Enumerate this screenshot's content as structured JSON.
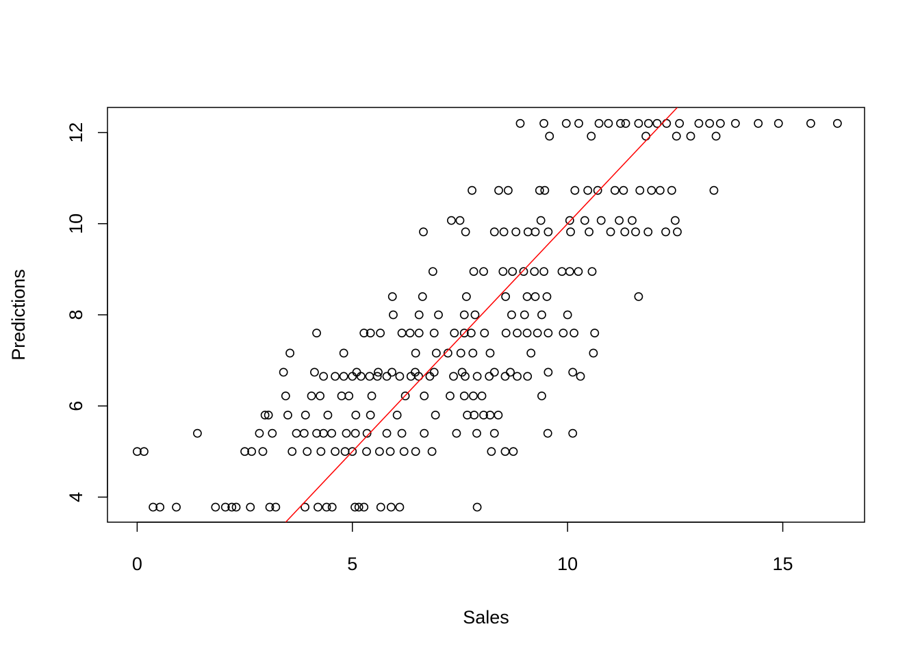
{
  "chart_data": {
    "type": "scatter",
    "title": "",
    "xlabel": "Sales",
    "ylabel": "Predictions",
    "xlim": [
      -0.69,
      16.9
    ],
    "ylim": [
      3.45,
      12.55
    ],
    "x_ticks": [
      0,
      5,
      10,
      15
    ],
    "y_ticks": [
      4,
      6,
      8,
      10,
      12
    ],
    "grid": false,
    "legend": "none",
    "colors": {
      "points": "#000000",
      "line": "#ff0000",
      "frame": "#000000"
    },
    "reference_line": {
      "type": "y=x",
      "color": "#ff0000"
    },
    "series": [
      {
        "points": [
          [
            0,
            5.0
          ],
          [
            0.16,
            5.0
          ],
          [
            0.37,
            3.78
          ],
          [
            0.53,
            3.78
          ],
          [
            0.91,
            3.78
          ],
          [
            1.82,
            3.78
          ],
          [
            2.05,
            3.78
          ],
          [
            2.2,
            3.78
          ],
          [
            2.3,
            3.78
          ],
          [
            2.63,
            3.78
          ],
          [
            3.08,
            3.78
          ],
          [
            3.22,
            3.78
          ],
          [
            3.9,
            3.78
          ],
          [
            4.2,
            3.78
          ],
          [
            4.4,
            3.78
          ],
          [
            4.53,
            3.78
          ],
          [
            5.06,
            3.78
          ],
          [
            5.15,
            3.78
          ],
          [
            5.27,
            3.78
          ],
          [
            5.66,
            3.78
          ],
          [
            5.9,
            3.78
          ],
          [
            6.1,
            3.78
          ],
          [
            7.9,
            3.78
          ],
          [
            1.4,
            5.4
          ],
          [
            2.84,
            5.4
          ],
          [
            3.14,
            5.4
          ],
          [
            3.7,
            5.4
          ],
          [
            3.88,
            5.4
          ],
          [
            4.17,
            5.4
          ],
          [
            4.33,
            5.4
          ],
          [
            4.52,
            5.4
          ],
          [
            4.86,
            5.4
          ],
          [
            5.07,
            5.4
          ],
          [
            5.34,
            5.4
          ],
          [
            5.8,
            5.4
          ],
          [
            6.15,
            5.4
          ],
          [
            6.67,
            5.4
          ],
          [
            7.42,
            5.4
          ],
          [
            7.89,
            5.4
          ],
          [
            8.3,
            5.4
          ],
          [
            9.54,
            5.4
          ],
          [
            10.12,
            5.4
          ],
          [
            2.5,
            5.0
          ],
          [
            2.66,
            5.0
          ],
          [
            2.92,
            5.0
          ],
          [
            3.6,
            5.0
          ],
          [
            3.95,
            5.0
          ],
          [
            4.27,
            5.0
          ],
          [
            4.6,
            5.0
          ],
          [
            4.83,
            5.0
          ],
          [
            5.0,
            5.0
          ],
          [
            5.33,
            5.0
          ],
          [
            5.63,
            5.0
          ],
          [
            5.88,
            5.0
          ],
          [
            6.2,
            5.0
          ],
          [
            6.47,
            5.0
          ],
          [
            6.85,
            5.0
          ],
          [
            8.23,
            5.0
          ],
          [
            8.55,
            5.0
          ],
          [
            8.74,
            5.0
          ],
          [
            2.97,
            5.8
          ],
          [
            3.05,
            5.8
          ],
          [
            3.5,
            5.8
          ],
          [
            3.91,
            5.8
          ],
          [
            4.43,
            5.8
          ],
          [
            5.08,
            5.8
          ],
          [
            5.42,
            5.8
          ],
          [
            6.04,
            5.8
          ],
          [
            6.93,
            5.8
          ],
          [
            7.67,
            5.8
          ],
          [
            7.83,
            5.8
          ],
          [
            8.05,
            5.8
          ],
          [
            8.2,
            5.8
          ],
          [
            8.39,
            5.8
          ],
          [
            3.45,
            6.22
          ],
          [
            4.05,
            6.22
          ],
          [
            4.25,
            6.22
          ],
          [
            4.75,
            6.22
          ],
          [
            4.92,
            6.22
          ],
          [
            5.45,
            6.22
          ],
          [
            6.23,
            6.22
          ],
          [
            6.67,
            6.22
          ],
          [
            7.27,
            6.22
          ],
          [
            7.6,
            6.22
          ],
          [
            7.81,
            6.22
          ],
          [
            8.01,
            6.22
          ],
          [
            9.4,
            6.22
          ],
          [
            3.4,
            6.74
          ],
          [
            4.12,
            6.74
          ],
          [
            5.1,
            6.74
          ],
          [
            5.6,
            6.74
          ],
          [
            5.92,
            6.74
          ],
          [
            6.46,
            6.74
          ],
          [
            6.9,
            6.74
          ],
          [
            7.55,
            6.74
          ],
          [
            8.3,
            6.74
          ],
          [
            8.67,
            6.74
          ],
          [
            9.55,
            6.74
          ],
          [
            10.12,
            6.74
          ],
          [
            4.33,
            6.65
          ],
          [
            4.6,
            6.65
          ],
          [
            4.8,
            6.65
          ],
          [
            5.0,
            6.65
          ],
          [
            5.2,
            6.65
          ],
          [
            5.4,
            6.65
          ],
          [
            5.58,
            6.65
          ],
          [
            5.8,
            6.65
          ],
          [
            6.1,
            6.65
          ],
          [
            6.36,
            6.65
          ],
          [
            6.54,
            6.65
          ],
          [
            6.8,
            6.65
          ],
          [
            7.35,
            6.65
          ],
          [
            7.62,
            6.65
          ],
          [
            7.9,
            6.65
          ],
          [
            8.18,
            6.65
          ],
          [
            8.55,
            6.65
          ],
          [
            8.83,
            6.65
          ],
          [
            9.07,
            6.65
          ],
          [
            10.3,
            6.65
          ],
          [
            3.55,
            7.16
          ],
          [
            4.8,
            7.16
          ],
          [
            6.47,
            7.16
          ],
          [
            6.95,
            7.16
          ],
          [
            7.22,
            7.16
          ],
          [
            7.52,
            7.16
          ],
          [
            7.8,
            7.16
          ],
          [
            8.2,
            7.16
          ],
          [
            9.15,
            7.16
          ],
          [
            10.6,
            7.16
          ],
          [
            4.17,
            7.6
          ],
          [
            5.27,
            7.6
          ],
          [
            5.42,
            7.6
          ],
          [
            5.65,
            7.6
          ],
          [
            6.15,
            7.6
          ],
          [
            6.34,
            7.6
          ],
          [
            6.55,
            7.6
          ],
          [
            6.9,
            7.6
          ],
          [
            7.37,
            7.6
          ],
          [
            7.6,
            7.6
          ],
          [
            7.76,
            7.6
          ],
          [
            8.07,
            7.6
          ],
          [
            8.57,
            7.6
          ],
          [
            8.83,
            7.6
          ],
          [
            9.06,
            7.6
          ],
          [
            9.3,
            7.6
          ],
          [
            9.55,
            7.6
          ],
          [
            9.9,
            7.6
          ],
          [
            10.15,
            7.6
          ],
          [
            10.63,
            7.6
          ],
          [
            5.95,
            8.0
          ],
          [
            6.55,
            8.0
          ],
          [
            7.0,
            8.0
          ],
          [
            7.6,
            8.0
          ],
          [
            7.85,
            8.0
          ],
          [
            8.7,
            8.0
          ],
          [
            9.0,
            8.0
          ],
          [
            9.4,
            8.0
          ],
          [
            10.0,
            8.0
          ],
          [
            5.93,
            8.4
          ],
          [
            6.63,
            8.4
          ],
          [
            7.65,
            8.4
          ],
          [
            8.56,
            8.4
          ],
          [
            9.06,
            8.4
          ],
          [
            9.25,
            8.4
          ],
          [
            9.52,
            8.4
          ],
          [
            11.65,
            8.4
          ],
          [
            6.87,
            8.95
          ],
          [
            7.82,
            8.95
          ],
          [
            8.05,
            8.95
          ],
          [
            8.5,
            8.95
          ],
          [
            8.72,
            8.95
          ],
          [
            8.98,
            8.95
          ],
          [
            9.23,
            8.95
          ],
          [
            9.45,
            8.95
          ],
          [
            9.87,
            8.95
          ],
          [
            10.05,
            8.95
          ],
          [
            10.25,
            8.95
          ],
          [
            10.57,
            8.95
          ],
          [
            6.65,
            9.82
          ],
          [
            7.63,
            9.82
          ],
          [
            8.3,
            9.82
          ],
          [
            8.52,
            9.82
          ],
          [
            8.8,
            9.82
          ],
          [
            9.08,
            9.82
          ],
          [
            9.25,
            9.82
          ],
          [
            9.55,
            9.82
          ],
          [
            10.07,
            9.82
          ],
          [
            10.5,
            9.82
          ],
          [
            11.0,
            9.82
          ],
          [
            11.33,
            9.82
          ],
          [
            11.58,
            9.82
          ],
          [
            11.87,
            9.82
          ],
          [
            12.28,
            9.82
          ],
          [
            12.55,
            9.82
          ],
          [
            7.3,
            10.07
          ],
          [
            7.5,
            10.07
          ],
          [
            9.38,
            10.07
          ],
          [
            10.05,
            10.07
          ],
          [
            10.4,
            10.07
          ],
          [
            10.78,
            10.07
          ],
          [
            11.2,
            10.07
          ],
          [
            11.5,
            10.07
          ],
          [
            12.5,
            10.07
          ],
          [
            7.78,
            10.73
          ],
          [
            8.4,
            10.73
          ],
          [
            8.62,
            10.73
          ],
          [
            9.35,
            10.73
          ],
          [
            9.47,
            10.73
          ],
          [
            10.17,
            10.73
          ],
          [
            10.47,
            10.73
          ],
          [
            10.7,
            10.73
          ],
          [
            11.1,
            10.73
          ],
          [
            11.3,
            10.73
          ],
          [
            11.68,
            10.73
          ],
          [
            11.95,
            10.73
          ],
          [
            12.15,
            10.73
          ],
          [
            12.42,
            10.73
          ],
          [
            13.4,
            10.73
          ],
          [
            9.58,
            11.92
          ],
          [
            10.55,
            11.92
          ],
          [
            11.82,
            11.92
          ],
          [
            12.53,
            11.92
          ],
          [
            12.86,
            11.92
          ],
          [
            13.45,
            11.92
          ],
          [
            8.9,
            12.2
          ],
          [
            9.45,
            12.2
          ],
          [
            9.97,
            12.2
          ],
          [
            10.26,
            12.2
          ],
          [
            10.73,
            12.2
          ],
          [
            10.95,
            12.2
          ],
          [
            11.23,
            12.2
          ],
          [
            11.35,
            12.2
          ],
          [
            11.65,
            12.2
          ],
          [
            11.88,
            12.2
          ],
          [
            12.08,
            12.2
          ],
          [
            12.3,
            12.2
          ],
          [
            12.6,
            12.2
          ],
          [
            13.05,
            12.2
          ],
          [
            13.3,
            12.2
          ],
          [
            13.55,
            12.2
          ],
          [
            13.9,
            12.2
          ],
          [
            14.43,
            12.2
          ],
          [
            14.9,
            12.2
          ],
          [
            15.65,
            12.2
          ],
          [
            16.27,
            12.2
          ]
        ]
      }
    ]
  }
}
